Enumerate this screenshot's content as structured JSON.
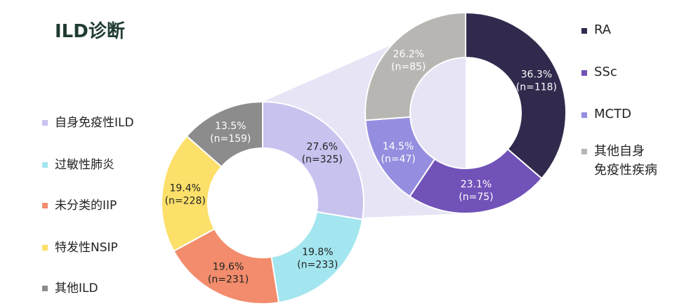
{
  "title": "ILD诊断",
  "chart_data": [
    {
      "type": "pie",
      "name": "",
      "slices": [
        {
          "label": "自身免疫性ILD",
          "percent": "27.6%",
          "n": "(n=325)",
          "value": 325,
          "color": "#c7c2ee"
        },
        {
          "label": "过敏性肺炎",
          "percent": "19.8%",
          "n": "(n=233)",
          "value": 233,
          "color": "#a3e6ef"
        },
        {
          "label": "未分类的IIP",
          "percent": "19.6%",
          "n": "(n=231)",
          "value": 231,
          "color": "#f28c6c"
        },
        {
          "label": "特发性NSIP",
          "percent": "19.4%",
          "n": "(n=228)",
          "value": 228,
          "color": "#fde06a"
        },
        {
          "label": "其他ILD",
          "percent": "13.5%",
          "n": "(n=159)",
          "value": 159,
          "color": "#8c8c8c"
        }
      ]
    },
    {
      "type": "pie",
      "name": "",
      "slices": [
        {
          "label": "RA",
          "percent": "36.3%",
          "n": "(n=118)",
          "value": 118,
          "color": "#312a4d"
        },
        {
          "label": "SSc",
          "percent": "23.1%",
          "n": "(n=75)",
          "value": 75,
          "color": "#7152b8"
        },
        {
          "label": "MCTD",
          "percent": "14.5%",
          "n": "(n=47)",
          "value": 47,
          "color": "#958ee0"
        },
        {
          "label": "其他自身免疫性疾病",
          "percent": "26.2%",
          "n": "(n=85)",
          "value": 85,
          "color": "#b8b6b3"
        }
      ]
    }
  ],
  "legend_left": [
    {
      "label": "自身免疫性ILD",
      "color": "#c7c2ee"
    },
    {
      "label": "过敏性肺炎",
      "color": "#a3e6ef"
    },
    {
      "label": "未分类的IIP",
      "color": "#f28c6c"
    },
    {
      "label": "特发性NSIP",
      "color": "#fde06a"
    },
    {
      "label": "其他ILD",
      "color": "#8c8c8c"
    }
  ],
  "legend_right": [
    {
      "label": "RA",
      "color": "#312a4d"
    },
    {
      "label": "SSc",
      "color": "#7152b8"
    },
    {
      "label": "MCTD",
      "color": "#958ee0"
    },
    {
      "label": "其他自身免疫性疾病",
      "label_line1": "其他自身",
      "label_line2": "免疫性疾病",
      "color": "#b8b6b3"
    }
  ],
  "connector_color": "#e6e4f5"
}
